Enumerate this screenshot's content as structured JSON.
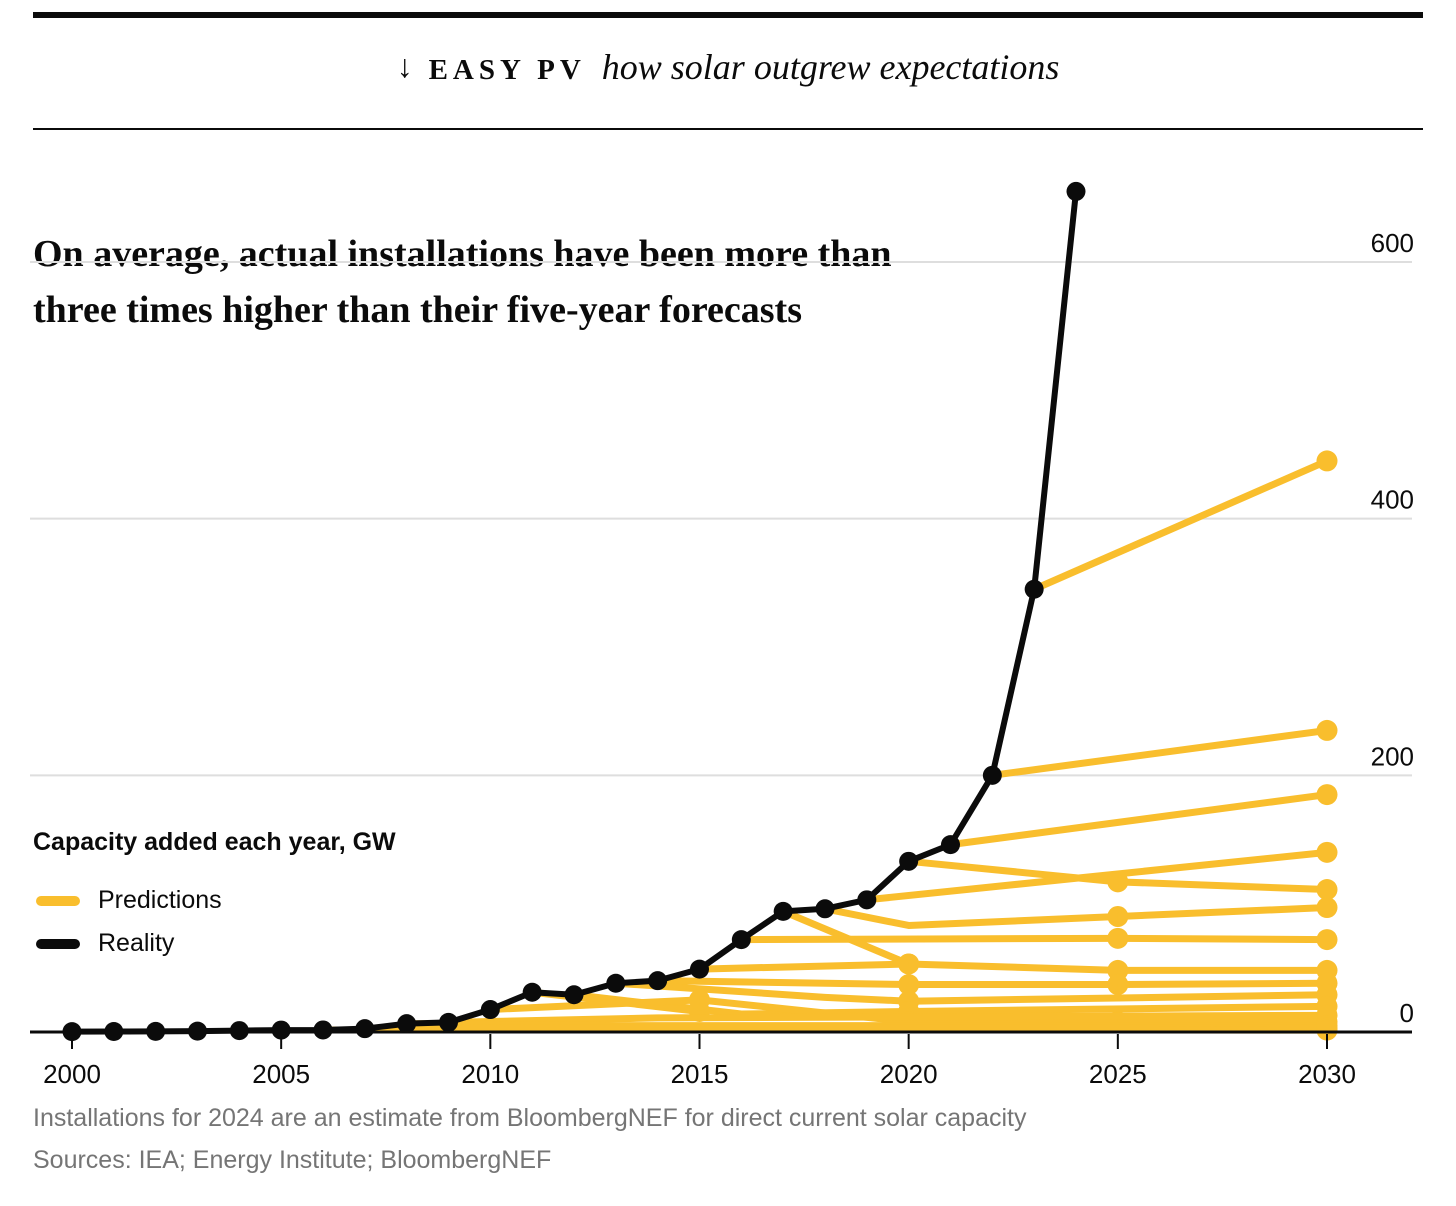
{
  "header": {
    "arrow": "↓",
    "kicker": "EASY PV",
    "title": "how solar outgrew expectations"
  },
  "subtitle": {
    "line1": "On average, actual installations have been more than",
    "line2": "three times higher than their five-year forecasts"
  },
  "footnotes": {
    "note": "Installations for 2024 are an estimate from BloombergNEF for direct current solar capacity",
    "sources": "Sources: IEA; Energy Institute; BloombergNEF"
  },
  "colors": {
    "prediction_yellow": "#F9BE2D",
    "reality_black": "#0B0B0B",
    "gridline_gray": "#DEDEDE",
    "footnote_gray": "#757575"
  },
  "chart_data": {
    "type": "line",
    "title": "how solar outgrew expectations",
    "unit_label": "Capacity added each year, GW",
    "xlabel": "",
    "ylabel": "Capacity added each year, GW",
    "x_ticks": [
      2000,
      2005,
      2010,
      2015,
      2020,
      2025,
      2030
    ],
    "y_ticks": [
      0,
      200,
      400,
      600
    ],
    "xlim": [
      2000,
      2030
    ],
    "ylim": [
      0,
      655
    ],
    "grid": "horizontal gridlines at 200, 400, 600; solid baseline at 0",
    "legend_position": "left, below subtitle",
    "legend": [
      {
        "label": "Predictions",
        "color": "#F9BE2D"
      },
      {
        "label": "Reality",
        "color": "#0B0B0B"
      }
    ],
    "reality": {
      "name": "Reality",
      "color": "#0B0B0B",
      "points": [
        [
          2000,
          0.3
        ],
        [
          2001,
          0.4
        ],
        [
          2002,
          0.5
        ],
        [
          2003,
          0.7
        ],
        [
          2004,
          1.1
        ],
        [
          2005,
          1.5
        ],
        [
          2006,
          1.6
        ],
        [
          2007,
          2.6
        ],
        [
          2008,
          6.5
        ],
        [
          2009,
          7.5
        ],
        [
          2010,
          17.5
        ],
        [
          2011,
          31
        ],
        [
          2012,
          29
        ],
        [
          2013,
          38
        ],
        [
          2014,
          40
        ],
        [
          2015,
          49
        ],
        [
          2016,
          72
        ],
        [
          2017,
          94
        ],
        [
          2018,
          96
        ],
        [
          2019,
          103
        ],
        [
          2020,
          133
        ],
        [
          2021,
          146
        ],
        [
          2022,
          200
        ],
        [
          2023,
          345
        ],
        [
          2024,
          655
        ]
      ]
    },
    "predictions": {
      "name": "Predictions",
      "color": "#F9BE2D",
      "description": "Five-year forecasts made in successive years; each line starts at the reality value of its origin year and ends with a dot",
      "lines": [
        {
          "points": [
            [
              2023,
              345
            ],
            [
              2030,
              445
            ]
          ]
        },
        {
          "points": [
            [
              2022,
              200
            ],
            [
              2030,
              235
            ]
          ]
        },
        {
          "points": [
            [
              2021,
              146
            ],
            [
              2030,
              185
            ]
          ]
        },
        {
          "points": [
            [
              2020,
              133
            ],
            [
              2025,
              117
            ]
          ]
        },
        {
          "points": [
            [
              2025,
              117
            ],
            [
              2030,
              111
            ]
          ]
        },
        {
          "points": [
            [
              2019,
              103
            ],
            [
              2030,
              140
            ]
          ]
        },
        {
          "points": [
            [
              2018,
              96
            ],
            [
              2020,
              83
            ],
            [
              2025,
              90
            ]
          ]
        },
        {
          "points": [
            [
              2025,
              90
            ],
            [
              2030,
              97
            ]
          ]
        },
        {
          "points": [
            [
              2016,
              72
            ],
            [
              2025,
              73
            ]
          ]
        },
        {
          "points": [
            [
              2025,
              73
            ],
            [
              2030,
              72
            ]
          ]
        },
        {
          "points": [
            [
              2017,
              94
            ],
            [
              2020,
              53
            ]
          ]
        },
        {
          "points": [
            [
              2015,
              49
            ],
            [
              2020,
              53
            ]
          ]
        },
        {
          "points": [
            [
              2020,
              53
            ],
            [
              2025,
              48
            ]
          ]
        },
        {
          "points": [
            [
              2025,
              48
            ],
            [
              2030,
              48
            ]
          ]
        },
        {
          "points": [
            [
              2014,
              40
            ],
            [
              2020,
              37
            ]
          ]
        },
        {
          "points": [
            [
              2020,
              37
            ],
            [
              2025,
              37
            ]
          ]
        },
        {
          "points": [
            [
              2025,
              37
            ],
            [
              2030,
              38
            ]
          ]
        },
        {
          "points": [
            [
              2013,
              38
            ],
            [
              2018,
              27
            ],
            [
              2020,
              24
            ]
          ]
        },
        {
          "points": [
            [
              2020,
              24
            ],
            [
              2030,
              29
            ]
          ]
        },
        {
          "points": [
            [
              2012,
              29
            ],
            [
              2016,
              14
            ],
            [
              2020,
              16
            ]
          ]
        },
        {
          "points": [
            [
              2020,
              16
            ],
            [
              2030,
              20
            ]
          ]
        },
        {
          "points": [
            [
              2011,
              31
            ],
            [
              2015,
              16
            ]
          ]
        },
        {
          "points": [
            [
              2010,
              17.5
            ],
            [
              2015,
              25
            ]
          ]
        },
        {
          "points": [
            [
              2015,
              25
            ],
            [
              2020,
              8
            ]
          ]
        },
        {
          "points": [
            [
              2020,
              8
            ],
            [
              2025,
              8
            ]
          ]
        },
        {
          "points": [
            [
              2025,
              8
            ],
            [
              2030,
              8
            ]
          ]
        },
        {
          "points": [
            [
              2009,
              7.5
            ],
            [
              2014,
              11
            ],
            [
              2030,
              13
            ]
          ]
        },
        {
          "points": [
            [
              2008,
              6.5
            ],
            [
              2013,
              5
            ],
            [
              2030,
              5
            ]
          ]
        },
        {
          "points": [
            [
              2007,
              2.6
            ],
            [
              2012,
              3
            ],
            [
              2030,
              3
            ]
          ]
        },
        {
          "points": [
            [
              2006,
              1.6
            ],
            [
              2030,
              1.5
            ]
          ]
        }
      ]
    }
  }
}
